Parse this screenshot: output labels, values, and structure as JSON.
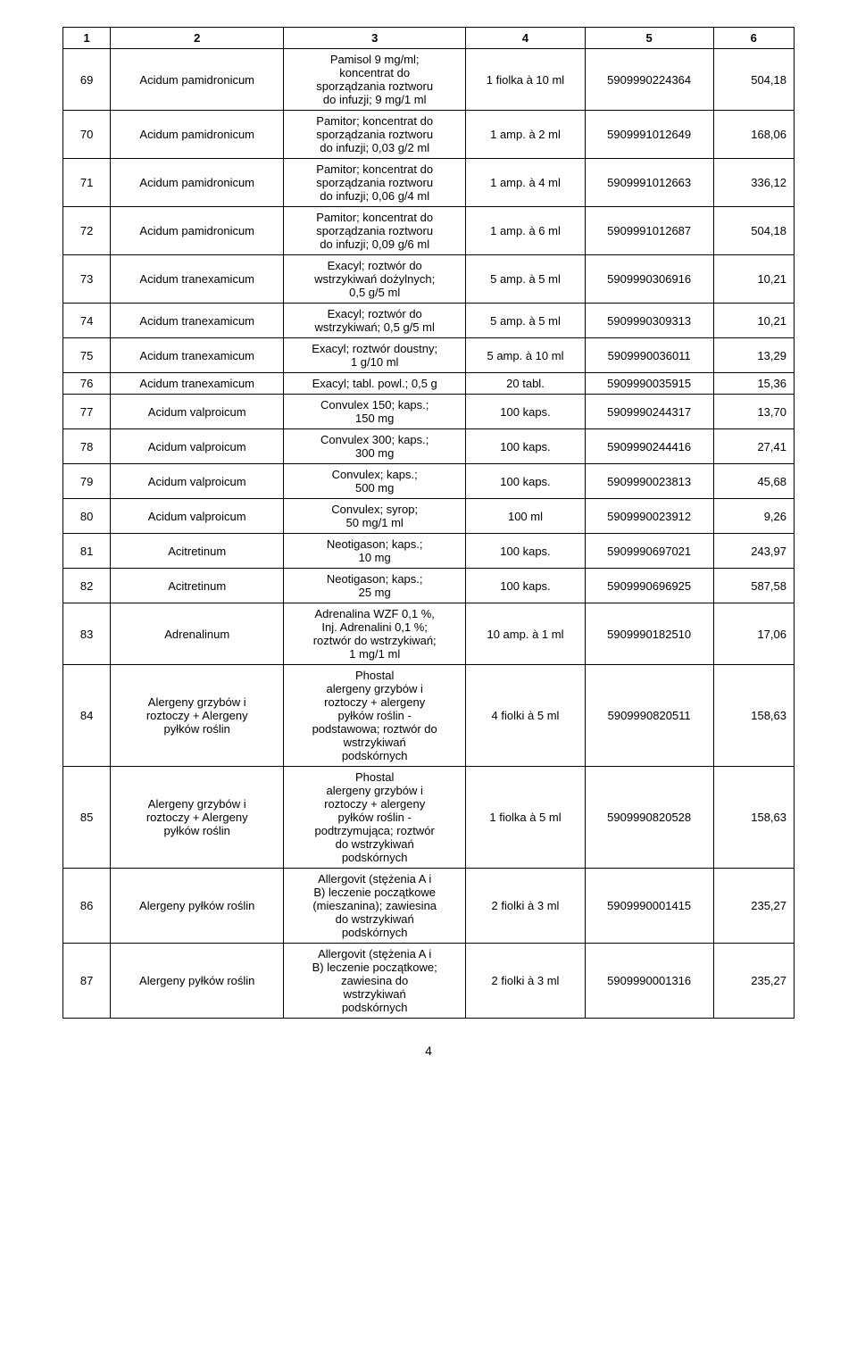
{
  "header": [
    "1",
    "2",
    "3",
    "4",
    "5",
    "6"
  ],
  "rows": [
    {
      "n": "69",
      "sub": "Acidum pamidronicum",
      "prod": "Pamisol 9 mg/ml;\nkoncentrat do\nsporządzania roztworu\ndo infuzji; 9 mg/1 ml",
      "pack": "1 fiolka à 10 ml",
      "code": "5909990224364",
      "price": "504,18"
    },
    {
      "n": "70",
      "sub": "Acidum pamidronicum",
      "prod": "Pamitor; koncentrat do\nsporządzania roztworu\ndo infuzji; 0,03 g/2 ml",
      "pack": "1 amp. à 2 ml",
      "code": "5909991012649",
      "price": "168,06"
    },
    {
      "n": "71",
      "sub": "Acidum pamidronicum",
      "prod": "Pamitor; koncentrat do\nsporządzania roztworu\ndo infuzji; 0,06 g/4 ml",
      "pack": "1 amp. à 4 ml",
      "code": "5909991012663",
      "price": "336,12"
    },
    {
      "n": "72",
      "sub": "Acidum pamidronicum",
      "prod": "Pamitor; koncentrat do\nsporządzania roztworu\ndo infuzji; 0,09 g/6 ml",
      "pack": "1 amp. à 6 ml",
      "code": "5909991012687",
      "price": "504,18"
    },
    {
      "n": "73",
      "sub": "Acidum tranexamicum",
      "prod": "Exacyl; roztwór do\nwstrzykiwań dożylnych;\n0,5 g/5 ml",
      "pack": "5 amp. à 5 ml",
      "code": "5909990306916",
      "price": "10,21"
    },
    {
      "n": "74",
      "sub": "Acidum tranexamicum",
      "prod": "Exacyl; roztwór do\nwstrzykiwań; 0,5 g/5 ml",
      "pack": "5 amp. à 5 ml",
      "code": "5909990309313",
      "price": "10,21"
    },
    {
      "n": "75",
      "sub": "Acidum tranexamicum",
      "prod": "Exacyl; roztwór doustny;\n1 g/10 ml",
      "pack": "5 amp. à 10 ml",
      "code": "5909990036011",
      "price": "13,29"
    },
    {
      "n": "76",
      "sub": "Acidum tranexamicum",
      "prod": "Exacyl; tabl. powl.; 0,5 g",
      "pack": "20 tabl.",
      "code": "5909990035915",
      "price": "15,36"
    },
    {
      "n": "77",
      "sub": "Acidum valproicum",
      "prod": "Convulex 150; kaps.;\n150 mg",
      "pack": "100 kaps.",
      "code": "5909990244317",
      "price": "13,70"
    },
    {
      "n": "78",
      "sub": "Acidum valproicum",
      "prod": "Convulex 300; kaps.;\n300 mg",
      "pack": "100 kaps.",
      "code": "5909990244416",
      "price": "27,41"
    },
    {
      "n": "79",
      "sub": "Acidum valproicum",
      "prod": "Convulex; kaps.;\n500 mg",
      "pack": "100 kaps.",
      "code": "5909990023813",
      "price": "45,68"
    },
    {
      "n": "80",
      "sub": "Acidum valproicum",
      "prod": "Convulex; syrop;\n50 mg/1 ml",
      "pack": "100 ml",
      "code": "5909990023912",
      "price": "9,26"
    },
    {
      "n": "81",
      "sub": "Acitretinum",
      "prod": "Neotigason; kaps.;\n10 mg",
      "pack": "100 kaps.",
      "code": "5909990697021",
      "price": "243,97"
    },
    {
      "n": "82",
      "sub": "Acitretinum",
      "prod": "Neotigason; kaps.;\n25 mg",
      "pack": "100 kaps.",
      "code": "5909990696925",
      "price": "587,58"
    },
    {
      "n": "83",
      "sub": "Adrenalinum",
      "prod": "Adrenalina WZF 0,1 %,\nInj. Adrenalini 0,1 %;\nroztwór do wstrzykiwań;\n1 mg/1 ml",
      "pack": "10 amp. à 1 ml",
      "code": "5909990182510",
      "price": "17,06"
    },
    {
      "n": "84",
      "sub": "Alergeny grzybów i\nroztoczy + Alergeny\npyłków roślin",
      "prod": "Phostal\nalergeny grzybów i\nroztoczy + alergeny\npyłków roślin -\npodstawowa; roztwór do\nwstrzykiwań\npodskórnych",
      "pack": "4 fiolki à 5 ml",
      "code": "5909990820511",
      "price": "158,63"
    },
    {
      "n": "85",
      "sub": "Alergeny grzybów i\nroztoczy + Alergeny\npyłków roślin",
      "prod": "Phostal\nalergeny grzybów i\nroztoczy + alergeny\npyłków roślin -\npodtrzymująca; roztwór\ndo wstrzykiwań\npodskórnych",
      "pack": "1 fiolka à 5 ml",
      "code": "5909990820528",
      "price": "158,63"
    },
    {
      "n": "86",
      "sub": "Alergeny pyłków roślin",
      "prod": "Allergovit (stężenia A i\nB) leczenie początkowe\n(mieszanina); zawiesina\ndo wstrzykiwań\npodskórnych",
      "pack": "2 fiolki à 3 ml",
      "code": "5909990001415",
      "price": "235,27"
    },
    {
      "n": "87",
      "sub": "Alergeny pyłków roślin",
      "prod": "Allergovit (stężenia A i\nB) leczenie początkowe;\nzawiesina do\nwstrzykiwań\npodskórnych",
      "pack": "2 fiolki à 3 ml",
      "code": "5909990001316",
      "price": "235,27"
    }
  ],
  "page_number": "4"
}
